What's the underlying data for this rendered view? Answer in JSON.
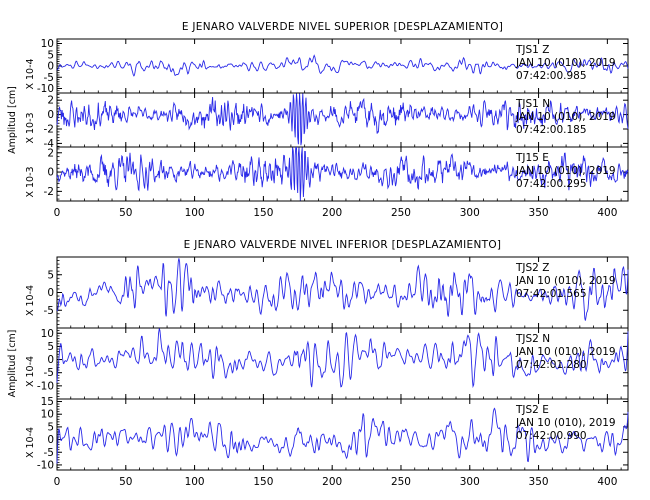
{
  "colors": {
    "trace": "#2a2ae8",
    "axis": "#000000",
    "background": "#ffffff"
  },
  "chart_data": [
    {
      "type": "line",
      "title": "E JENARO VALVERDE NIVEL SUPERIOR [DESPLAZAMIENTO]",
      "ylabel": "Amplitud [cm]",
      "xlim": [
        0,
        415
      ],
      "xticks": [
        0,
        50,
        100,
        150,
        200,
        250,
        300,
        350,
        400
      ],
      "panels": [
        {
          "scale_label": "X 10-4",
          "yticks": [
            10,
            5,
            0,
            -5,
            -10
          ],
          "ylim": [
            -12,
            12
          ],
          "station": "TJS1 Z",
          "date": "JAN 10 (010), 2019",
          "time": "07:42:00.985",
          "series": {
            "amp": 4.0,
            "base": 1.4,
            "burst": 1.2,
            "seed": 11,
            "smooth": 3,
            "drift": 0.6
          }
        },
        {
          "scale_label": "X 10-3",
          "yticks": [
            2,
            0,
            -2,
            -4
          ],
          "ylim": [
            -4.5,
            3
          ],
          "station": "TJS1 N",
          "date": "JAN 10 (010), 2019",
          "time": "07:42:00.185",
          "series": {
            "amp": 2.4,
            "base": 0.1,
            "burst": 9.0,
            "seed": 23,
            "smooth": 1,
            "drift": 0.0
          }
        },
        {
          "scale_label": "X 10-3",
          "yticks": [
            2,
            0,
            -2
          ],
          "ylim": [
            -3,
            2.6
          ],
          "station": "TJ15 E",
          "date": "JAN 10 (010), 2019",
          "time": "07:42:00.295",
          "series": {
            "amp": 2.0,
            "base": 0.18,
            "burst": 7.0,
            "seed": 37,
            "smooth": 1,
            "drift": 0.0
          }
        }
      ]
    },
    {
      "type": "line",
      "title": "E JENARO VALVERDE NIVEL INFERIOR [DESPLAZAMIENTO]",
      "ylabel": "Amplitud [cm]",
      "xlim": [
        0,
        415
      ],
      "xticks": [
        0,
        50,
        100,
        150,
        200,
        250,
        300,
        350,
        400
      ],
      "panels": [
        {
          "scale_label": "X 10-4",
          "yticks": [
            5,
            0,
            -5
          ],
          "ylim": [
            -10,
            10
          ],
          "station": "TJS2 Z",
          "date": "JAN 10 (010), 2019",
          "time": "07:42:01.565",
          "series": {
            "amp": 8.0,
            "base": 2.6,
            "burst": 0.8,
            "seed": 53,
            "smooth": 3,
            "drift": 1.0
          }
        },
        {
          "scale_label": "X 10-4",
          "yticks": [
            10,
            5,
            0,
            -5,
            -10
          ],
          "ylim": [
            -15,
            12
          ],
          "station": "TJS2 N",
          "date": "JAN 10 (010), 2019",
          "time": "07:42:01.280",
          "series": {
            "amp": 10.0,
            "base": 3.2,
            "burst": 0.8,
            "seed": 71,
            "smooth": 4,
            "drift": 1.6
          }
        },
        {
          "scale_label": "X 10-4",
          "yticks": [
            15,
            10,
            5,
            0,
            -5,
            -10
          ],
          "ylim": [
            -12,
            16
          ],
          "station": "TJS2 E",
          "date": "JAN 10 (010), 2019",
          "time": "07:42:00.990",
          "series": {
            "amp": 10.0,
            "base": 3.0,
            "burst": 0.9,
            "seed": 89,
            "smooth": 4,
            "drift": 1.4
          }
        }
      ]
    }
  ]
}
